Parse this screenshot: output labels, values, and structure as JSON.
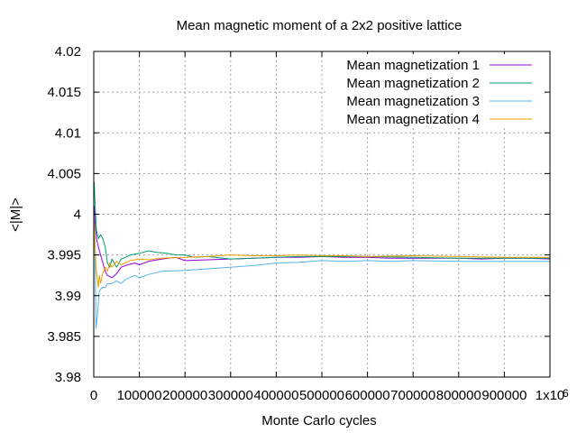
{
  "chart_data": {
    "type": "line",
    "title": "Mean magnetic moment of a 2x2 positive lattice",
    "xlabel": "Monte Carlo cycles",
    "ylabel": "<|M|>",
    "xlim": [
      0,
      1000000
    ],
    "ylim": [
      3.98,
      4.02
    ],
    "x_ticks": [
      0,
      100000,
      200000,
      300000,
      400000,
      500000,
      600000,
      700000,
      800000,
      900000,
      1000000
    ],
    "x_tick_labels": [
      "0",
      "100000",
      "200000",
      "300000",
      "400000",
      "500000",
      "600000",
      "700000",
      "800000",
      "900000",
      "1x10"
    ],
    "x_exponent_label": "6",
    "y_ticks": [
      3.98,
      3.985,
      3.99,
      3.995,
      4.0,
      4.005,
      4.01,
      4.015,
      4.02
    ],
    "y_tick_labels": [
      "3.98",
      "3.985",
      "3.99",
      "3.995",
      "4",
      "4.005",
      "4.01",
      "4.015",
      "4.02"
    ],
    "grid": true,
    "legend_position": "top-right",
    "series": [
      {
        "name": "Mean magnetization 1",
        "color": "#9400d3",
        "x": [
          1000,
          3000,
          6000,
          10000,
          15000,
          20000,
          25000,
          30000,
          40000,
          50000,
          60000,
          75000,
          90000,
          100000,
          120000,
          150000,
          180000,
          200000,
          250000,
          300000,
          350000,
          400000,
          450000,
          500000,
          550000,
          600000,
          650000,
          700000,
          750000,
          800000,
          850000,
          900000,
          950000,
          1000000
        ],
        "y": [
          4.001,
          3.999,
          3.997,
          3.996,
          3.995,
          3.994,
          3.993,
          3.9925,
          3.9922,
          3.9927,
          3.9935,
          3.9938,
          3.994,
          3.9938,
          3.9942,
          3.9945,
          3.9947,
          3.9943,
          3.9944,
          3.9945,
          3.9946,
          3.9947,
          3.9947,
          3.9948,
          3.9947,
          3.9947,
          3.9946,
          3.9946,
          3.9946,
          3.9946,
          3.9945,
          3.9946,
          3.9946,
          3.9945
        ]
      },
      {
        "name": "Mean magnetization 2",
        "color": "#009e73",
        "x": [
          1000,
          3000,
          6000,
          10000,
          15000,
          20000,
          25000,
          30000,
          35000,
          40000,
          50000,
          60000,
          70000,
          80000,
          100000,
          120000,
          140000,
          160000,
          180000,
          200000,
          220000,
          250000,
          300000,
          350000,
          400000,
          450000,
          500000,
          550000,
          600000,
          700000,
          800000,
          900000,
          1000000
        ],
        "y": [
          4.004,
          4.001,
          3.998,
          3.997,
          3.9975,
          3.997,
          3.996,
          3.994,
          3.9935,
          3.9945,
          3.9935,
          3.9945,
          3.9947,
          3.995,
          3.9952,
          3.9955,
          3.9953,
          3.9952,
          3.995,
          3.995,
          3.9947,
          3.9948,
          3.9945,
          3.9946,
          3.9947,
          3.9948,
          3.9948,
          3.9948,
          3.9948,
          3.9947,
          3.9946,
          3.9946,
          3.9946
        ]
      },
      {
        "name": "Mean magnetization 3",
        "color": "#56b4e9",
        "x": [
          1000,
          3000,
          5000,
          8000,
          12000,
          18000,
          25000,
          30000,
          40000,
          50000,
          60000,
          70000,
          90000,
          100000,
          120000,
          150000,
          200000,
          250000,
          300000,
          350000,
          400000,
          450000,
          500000,
          550000,
          600000,
          650000,
          700000,
          800000,
          900000,
          1000000
        ],
        "y": [
          3.9995,
          3.9945,
          3.986,
          3.9875,
          3.9905,
          3.991,
          3.991,
          3.9915,
          3.9915,
          3.9918,
          3.9915,
          3.992,
          3.9925,
          3.9922,
          3.9926,
          3.993,
          3.9931,
          3.9933,
          3.9935,
          3.9937,
          3.994,
          3.9941,
          3.9943,
          3.9942,
          3.9943,
          3.9942,
          3.9943,
          3.9942,
          3.9942,
          3.9942
        ]
      },
      {
        "name": "Mean magnetization 4",
        "color": "#e69f00",
        "x": [
          1000,
          3000,
          5000,
          8000,
          10000,
          12000,
          15000,
          20000,
          25000,
          30000,
          35000,
          40000,
          50000,
          60000,
          80000,
          100000,
          120000,
          150000,
          200000,
          250000,
          300000,
          350000,
          400000,
          450000,
          500000,
          550000,
          600000,
          700000,
          800000,
          900000,
          1000000
        ],
        "y": [
          3.999,
          3.996,
          3.9935,
          3.992,
          3.991,
          3.9925,
          3.9915,
          3.9928,
          3.9935,
          3.993,
          3.994,
          3.9935,
          3.9942,
          3.9938,
          3.9943,
          3.9945,
          3.9944,
          3.9946,
          3.9947,
          3.9948,
          3.995,
          3.9949,
          3.9949,
          3.995,
          3.9949,
          3.9949,
          3.9948,
          3.9949,
          3.9948,
          3.9947,
          3.9947
        ]
      }
    ]
  }
}
